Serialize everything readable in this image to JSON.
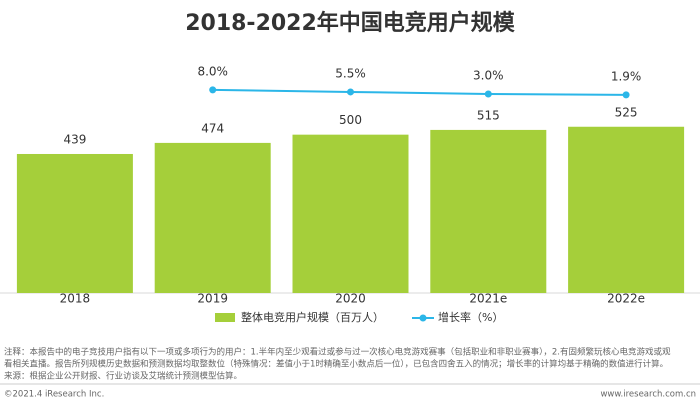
{
  "chart_data": {
    "type": "bar",
    "title": "2018-2022年中国电竞用户规模",
    "categories": [
      "2018",
      "2019",
      "2020",
      "2021e",
      "2022e"
    ],
    "series": [
      {
        "name": "整体电竞用户规模（百万人）",
        "type": "bar",
        "color": "#a5cf3a",
        "values": [
          439,
          474,
          500,
          515,
          525
        ]
      },
      {
        "name": "增长率（%）",
        "type": "line",
        "axis": "y2",
        "color": "#2bb6e8",
        "values": [
          null,
          8.0,
          5.5,
          3.0,
          1.9
        ],
        "value_labels": [
          null,
          "8.0%",
          "5.5%",
          "3.0%",
          "1.9%"
        ]
      }
    ],
    "ylim": [
      0,
      900
    ],
    "y2lim": [
      -240,
      108
    ],
    "notes": [
      "注释：本报告中的电子竞技用户指有以下一项或多项行为的用户：1.半年内至少观看过或参与过一次核心电竞游戏赛事（包括职业和非职业赛事），2.有固频繁玩核心电竞游戏或观",
      "看相关直播。报告所列规模历史数据和预测数据均取整数位（特殊情况：差值小于1时精确至小数点后一位），已包含四舍五入的情况；增长率的计算均基于精确的数值进行计算。",
      "来源：根据企业公开财报、行业访谈及艾瑞统计预测模型估算。"
    ],
    "copyright": "©2021.4 iResearch Inc.",
    "website": "www.iresearch.com.cn"
  }
}
